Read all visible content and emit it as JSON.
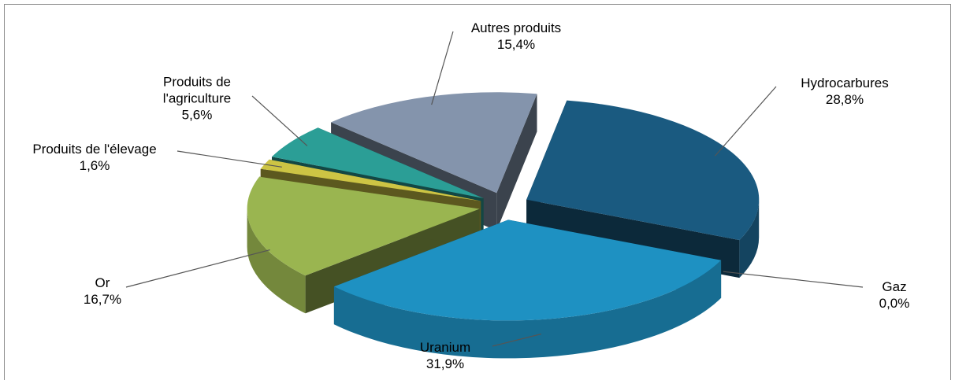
{
  "chart_data": {
    "type": "pie3d",
    "categories": [
      "Hydrocarbures",
      "Gaz",
      "Uranium",
      "Or",
      "Produits de l'élevage",
      "Produits de l'agriculture",
      "Autres produits"
    ],
    "values": [
      28.8,
      0.0,
      31.9,
      16.7,
      1.6,
      5.6,
      15.4
    ],
    "value_labels": [
      "28,8%",
      "0,0%",
      "31,9%",
      "16,7%",
      "1,6%",
      "5,6%",
      "15,4%"
    ],
    "colors": [
      "#1a5a80",
      "#5a7fa0",
      "#1e91c2",
      "#9ab550",
      "#cdc444",
      "#2b9e96",
      "#8494ac"
    ]
  }
}
